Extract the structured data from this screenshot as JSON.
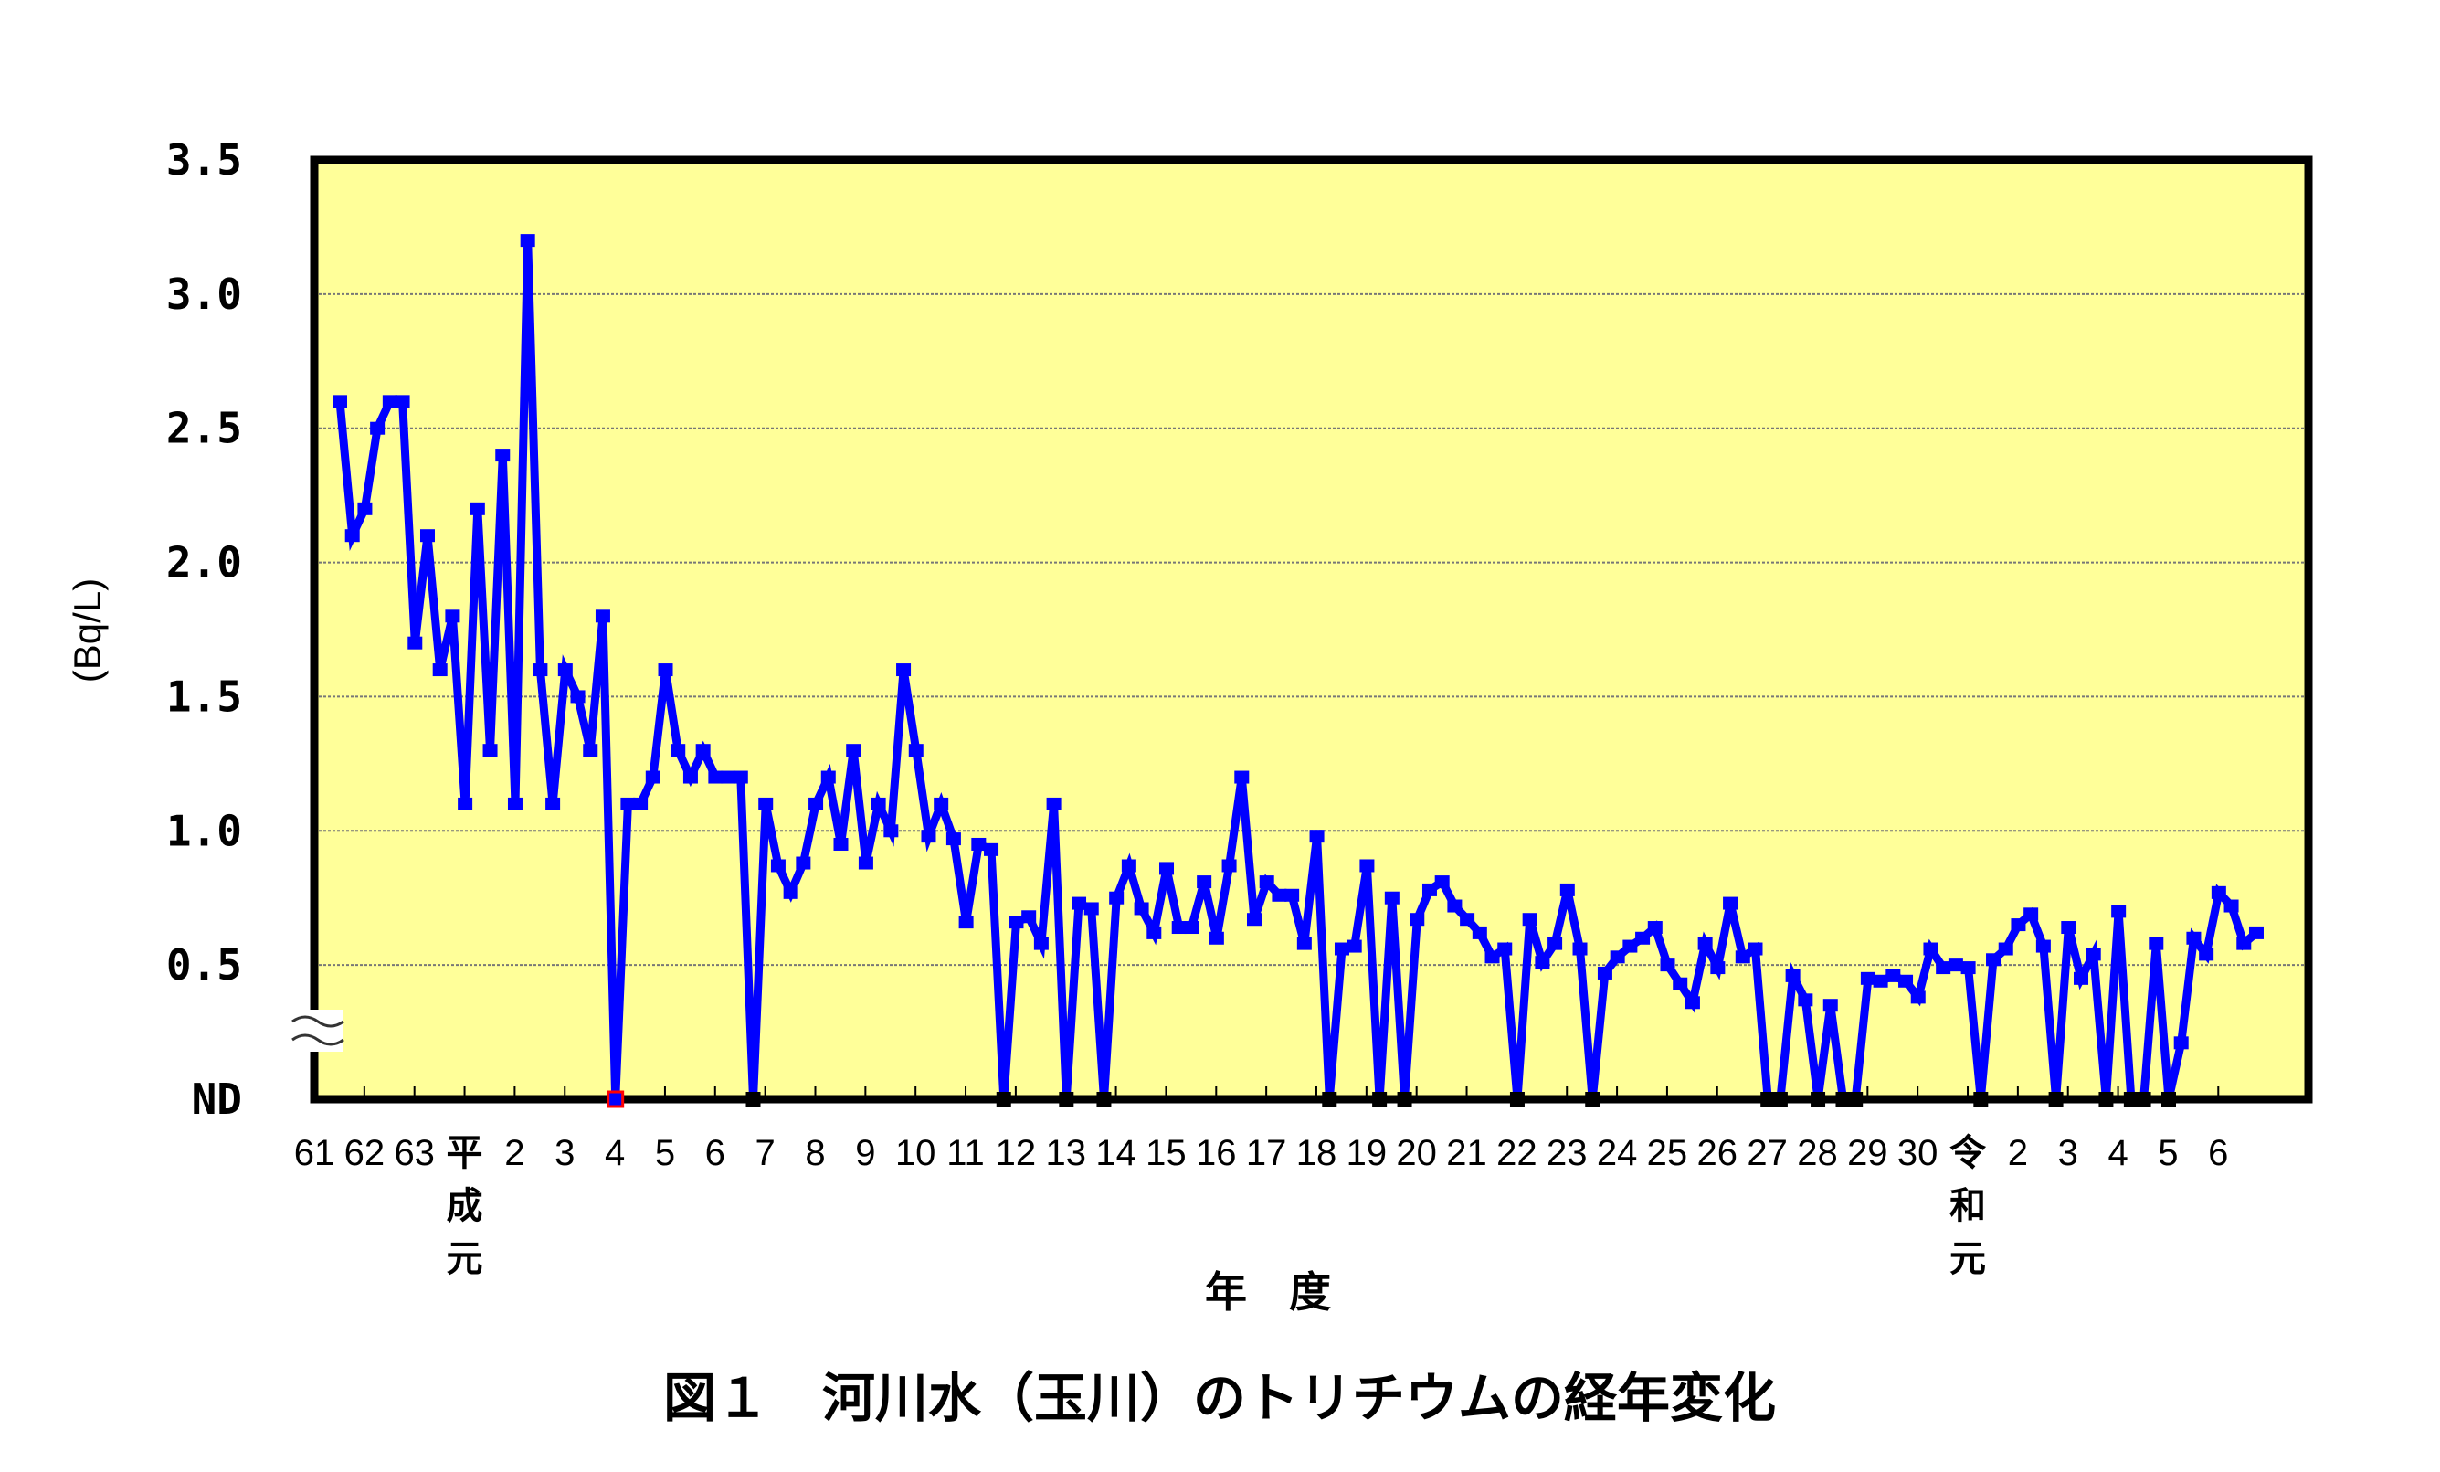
{
  "chart_data": {
    "type": "line",
    "title": "図１　河川水（玉川）のトリチウムの経年変化",
    "xlabel": "年　度",
    "ylabel": "(Bq/L)",
    "ylim": [
      0,
      3.5
    ],
    "yticks": [
      {
        "value": 3.5,
        "label": "3.5"
      },
      {
        "value": 3.0,
        "label": "3.0"
      },
      {
        "value": 2.5,
        "label": "2.5"
      },
      {
        "value": 2.0,
        "label": "2.0"
      },
      {
        "value": 1.5,
        "label": "1.5"
      },
      {
        "value": 1.0,
        "label": "1.0"
      },
      {
        "value": 0.5,
        "label": "0.5"
      },
      {
        "value": 0.0,
        "label": "ND"
      }
    ],
    "grid": true,
    "axis_break_symbol": "≈",
    "legend": null,
    "x_categories": [
      "61",
      "62",
      "63",
      "平成元",
      "2",
      "3",
      "4",
      "5",
      "6",
      "7",
      "8",
      "9",
      "10",
      "11",
      "12",
      "13",
      "14",
      "15",
      "16",
      "17",
      "18",
      "19",
      "20",
      "21",
      "22",
      "23",
      "24",
      "25",
      "26",
      "27",
      "28",
      "29",
      "30",
      "令和元",
      "2",
      "3",
      "4",
      "5",
      "6"
    ],
    "era_labels": [
      {
        "index": 3,
        "chars": [
          "平",
          "成",
          "元"
        ]
      },
      {
        "index": 33,
        "chars": [
          "令",
          "和",
          "元"
        ]
      }
    ],
    "points_per_year": 4,
    "nd_label": "ND",
    "series": [
      {
        "name": "河川水（玉川）トリチウム",
        "color": "#0000ff",
        "values": [
          2.6,
          2.1,
          2.2,
          2.5,
          2.6,
          2.6,
          1.7,
          2.1,
          1.6,
          1.8,
          1.1,
          2.2,
          1.3,
          2.4,
          1.1,
          3.2,
          1.6,
          1.1,
          1.6,
          1.5,
          1.3,
          1.8,
          null,
          1.1,
          1.1,
          1.2,
          1.6,
          1.3,
          1.2,
          1.3,
          1.2,
          1.2,
          1.2,
          null,
          1.1,
          0.87,
          0.77,
          0.88,
          1.1,
          1.2,
          0.95,
          1.3,
          0.88,
          1.1,
          1.0,
          1.6,
          1.3,
          0.98,
          1.1,
          0.97,
          0.66,
          0.95,
          0.93,
          null,
          0.66,
          0.68,
          0.58,
          1.1,
          null,
          0.73,
          0.71,
          null,
          0.75,
          0.87,
          0.71,
          0.62,
          0.86,
          0.64,
          0.64,
          0.81,
          0.6,
          0.87,
          1.2,
          0.67,
          0.81,
          0.76,
          0.76,
          0.58,
          0.98,
          null,
          0.56,
          0.57,
          0.87,
          null,
          0.75,
          null,
          0.67,
          0.78,
          0.81,
          0.72,
          0.67,
          0.62,
          0.53,
          0.56,
          null,
          0.67,
          0.51,
          0.58,
          0.78,
          0.56,
          null,
          0.47,
          0.53,
          0.57,
          0.6,
          0.64,
          0.5,
          0.43,
          0.36,
          0.58,
          0.49,
          0.73,
          0.53,
          0.56,
          null,
          null,
          0.46,
          0.37,
          null,
          0.35,
          null,
          null,
          0.45,
          0.44,
          0.46,
          0.44,
          0.38,
          0.56,
          0.49,
          0.5,
          0.49,
          null,
          0.52,
          0.56,
          0.65,
          0.69,
          0.57,
          null,
          0.64,
          0.45,
          0.54,
          null,
          0.7,
          null,
          null,
          0.58,
          null,
          0.21,
          0.6,
          0.54,
          0.77,
          0.72,
          0.58,
          0.62
        ]
      }
    ]
  },
  "colors": {
    "plot_bg": "#ffff99",
    "line": "#0000ff",
    "axis": "#000000",
    "grid": "#777777",
    "nd_marker": "#000000",
    "highlight_marker": "#ff0000"
  }
}
